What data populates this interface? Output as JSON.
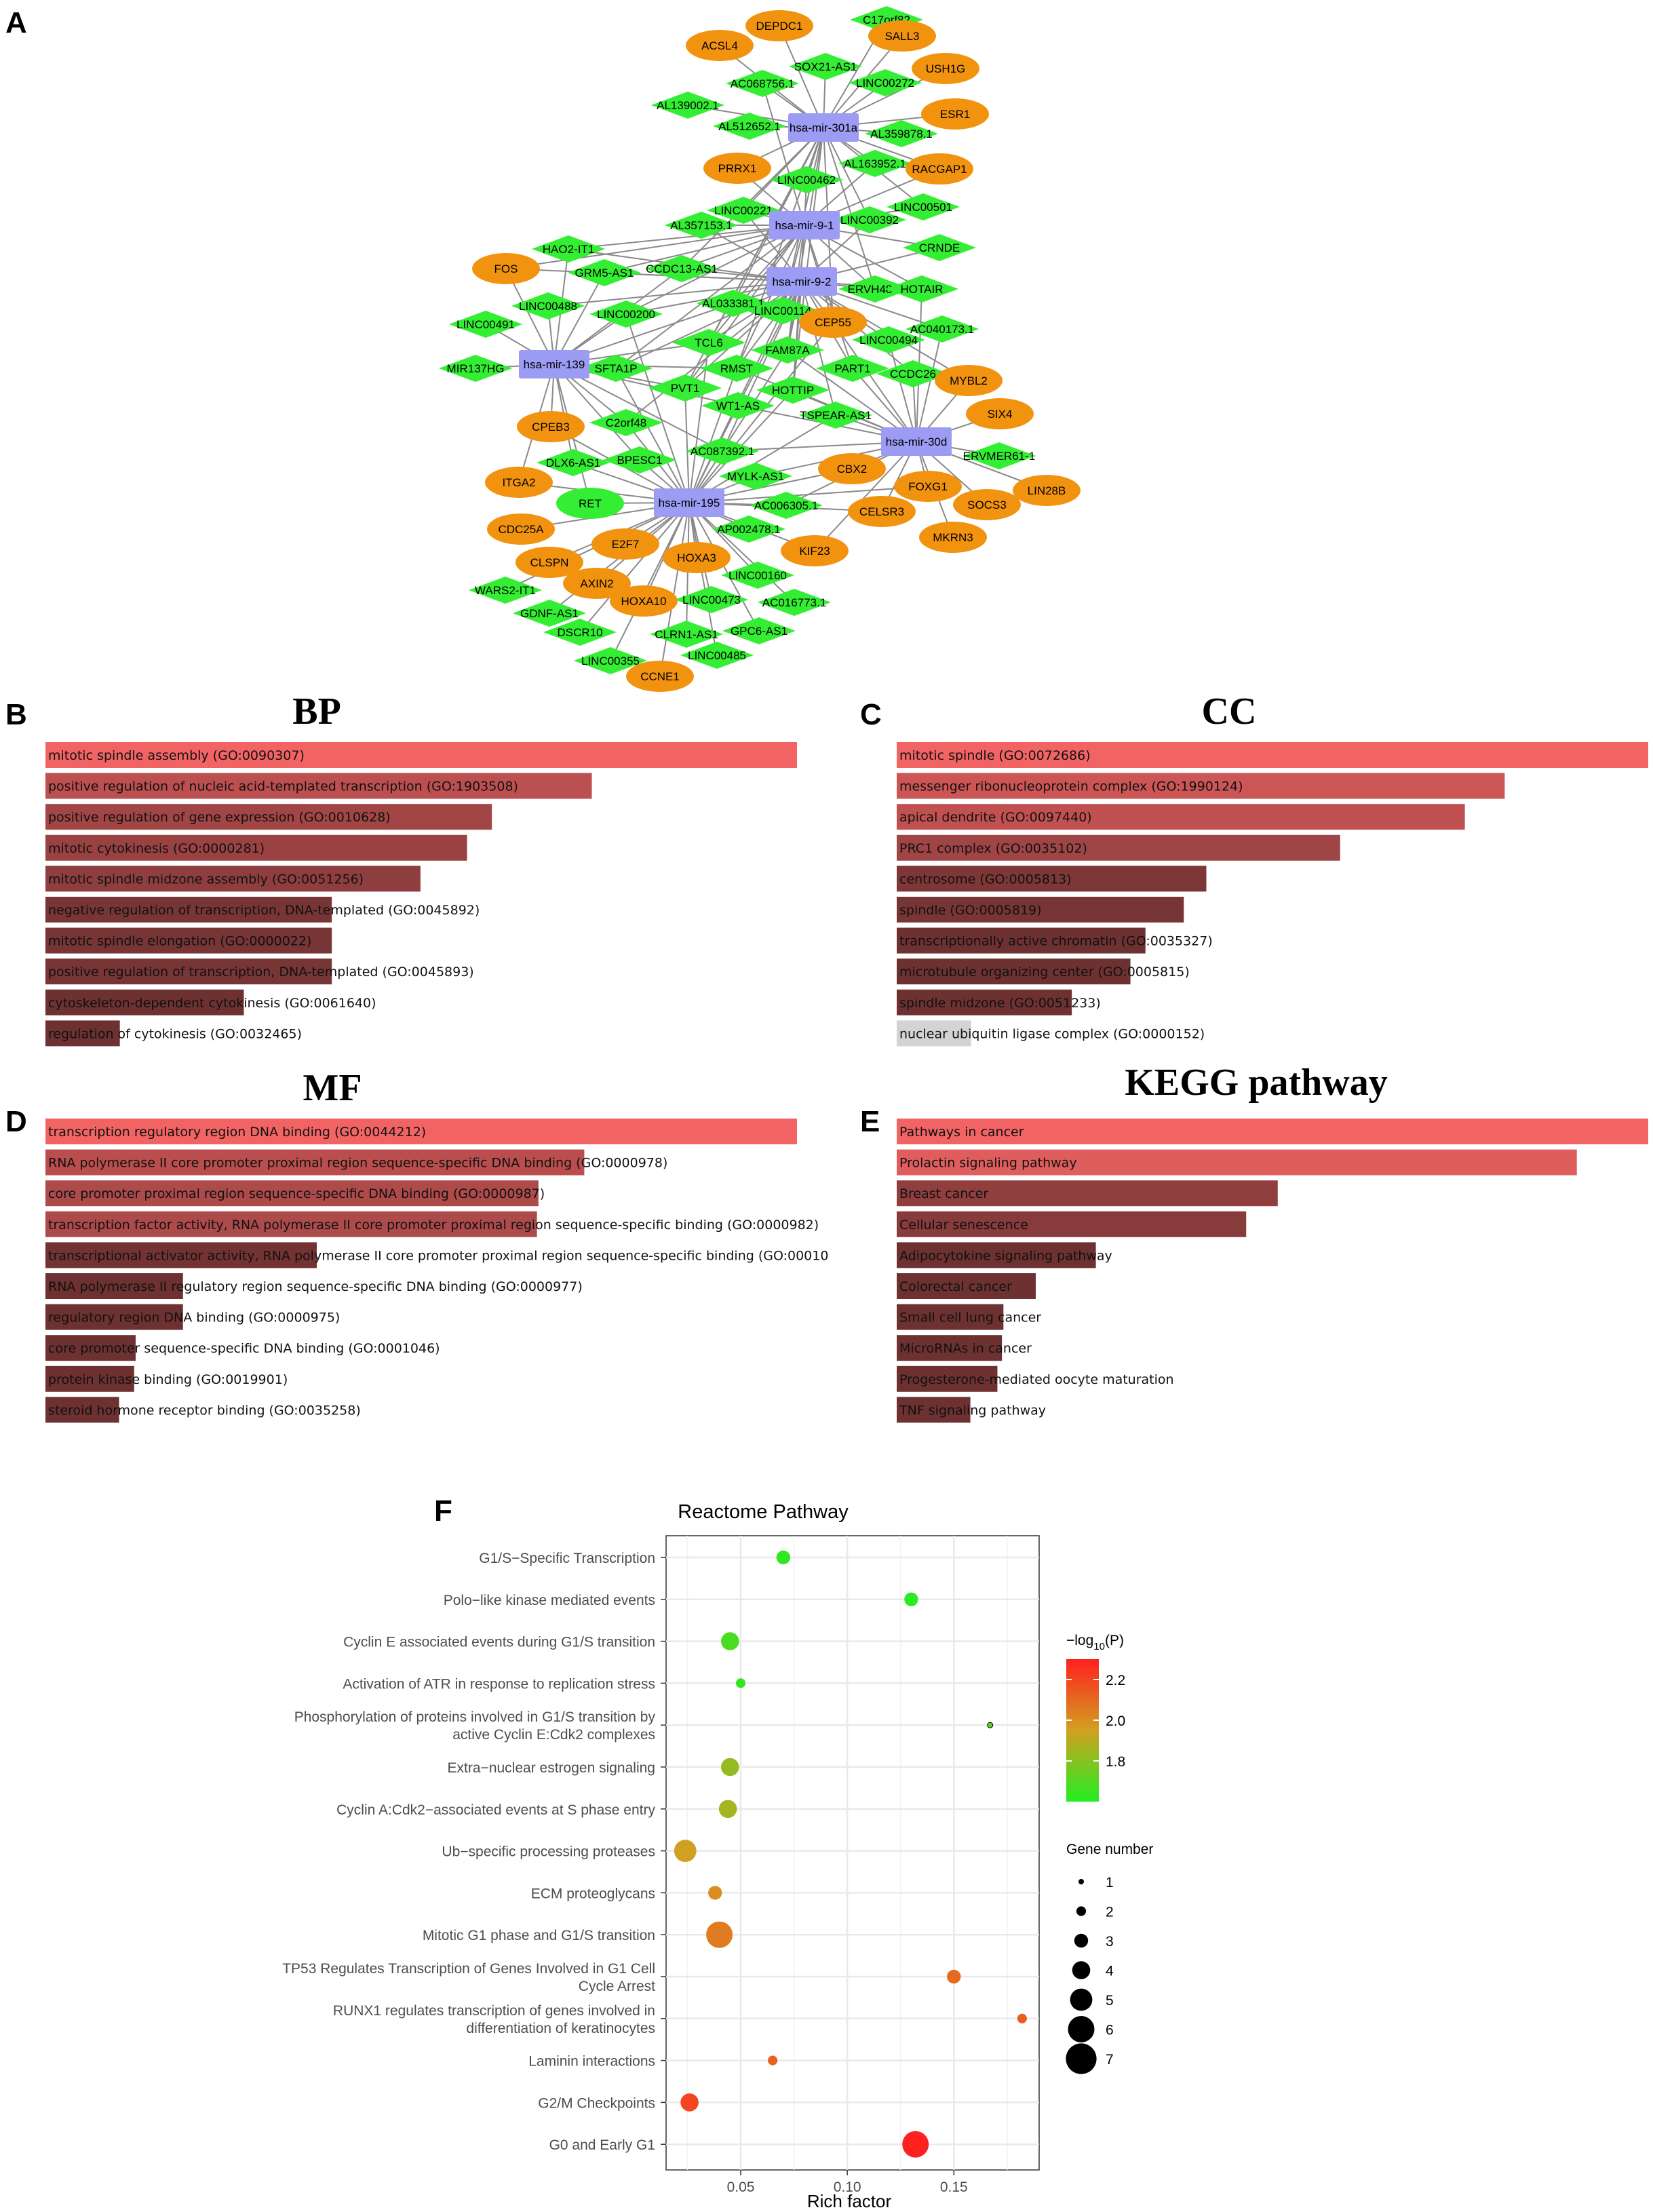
{
  "colors": {
    "bar_top": "#f26464",
    "bar_bottom": "#6d3131",
    "bar_gray": "#d3d3d3",
    "mirna": "#9c9cf4",
    "lncrna": "#33ee33",
    "mrna": "#f2930f",
    "edge": "#8a8a8a",
    "grid": "#e9e9e9",
    "scale_low": "#22ee22",
    "scale_high": "#ff2020"
  },
  "panel_labels": {
    "a": "A",
    "b": "B",
    "c": "C",
    "d": "D",
    "e": "E",
    "f": "F"
  },
  "network": {
    "mirnas": [
      "hsa-mir-301a",
      "hsa-mir-9-1",
      "hsa-mir-9-2",
      "hsa-mir-139",
      "hsa-mir-30d",
      "hsa-mir-195"
    ],
    "lncrnas": [
      "C17orf82",
      "SOX21-AS1",
      "AC068756.1",
      "LINC00272",
      "AL139002.1",
      "AL512652.1",
      "AL359878.1",
      "AL163952.1",
      "LINC00462",
      "LINC00501",
      "LINC00221",
      "AL357153.1",
      "LINC00392",
      "HAO2-IT1",
      "CRNDE",
      "GRM5-AS1",
      "CCDC13-AS1",
      "ERVH48-1",
      "HOTAIR",
      "LINC00488",
      "LINC00200",
      "AL033381.1",
      "LINC00114",
      "AC040173.1",
      "LINC00491",
      "TCL6",
      "FAM87A",
      "LINC00494",
      "MIR137HG",
      "SFTA1P",
      "RMST",
      "PART1",
      "CCDC26",
      "PVT1",
      "HOTTIP",
      "WT1-AS",
      "TSPEAR-AS1",
      "C2orf48",
      "AC087392.1",
      "ERVMER61-1",
      "DLX6-AS1",
      "BPESC1",
      "MYLK-AS1",
      "AC006305.1",
      "AP002478.1",
      "LINC00160",
      "WARS2-IT1",
      "LINC00473",
      "AC016773.1",
      "GDNF-AS1",
      "DSCR10",
      "CLRN1-AS1",
      "GPC6-AS1",
      "LINC00355",
      "LINC00485"
    ],
    "mrnas": [
      "DEPDC1",
      "SALL3",
      "ACSL4",
      "USH1G",
      "ESR1",
      "PRRX1",
      "RACGAP1",
      "FOS",
      "CEP55",
      "MYBL2",
      "SIX4",
      "CPEB3",
      "ITGA2",
      "CBX2",
      "FOXG1",
      "LIN28B",
      "SOCS3",
      "CELSR3",
      "RET",
      "CDC25A",
      "E2F7",
      "KIF23",
      "MKRN3",
      "HOXA3",
      "CLSPN",
      "AXIN2",
      "HOXA10",
      "CCNE1"
    ]
  },
  "bp": {
    "title": "BP",
    "bars": [
      {
        "label": "mitotic spindle assembly (GO:0090307)",
        "value": 1.0
      },
      {
        "label": "positive regulation of nucleic acid-templated transcription (GO:1903508)",
        "value": 0.727
      },
      {
        "label": "positive regulation of gene expression (GO:0010628)",
        "value": 0.594
      },
      {
        "label": "mitotic cytokinesis (GO:0000281)",
        "value": 0.561
      },
      {
        "label": "mitotic spindle midzone assembly (GO:0051256)",
        "value": 0.499
      },
      {
        "label": "negative regulation of transcription, DNA-templated (GO:0045892)",
        "value": 0.381
      },
      {
        "label": "mitotic spindle elongation (GO:0000022)",
        "value": 0.381
      },
      {
        "label": "positive regulation of transcription, DNA-templated (GO:0045893)",
        "value": 0.381
      },
      {
        "label": "cytoskeleton-dependent cytokinesis (GO:0061640)",
        "value": 0.264
      },
      {
        "label": "regulation of cytokinesis (GO:0032465)",
        "value": 0.099
      }
    ]
  },
  "cc": {
    "title": "CC",
    "bars": [
      {
        "label": "mitotic spindle (GO:0072686)",
        "value": 1.0
      },
      {
        "label": "messenger ribonucleoprotein complex (GO:1990124)",
        "value": 0.809
      },
      {
        "label": "apical dendrite (GO:0097440)",
        "value": 0.756
      },
      {
        "label": "PRC1 complex (GO:0035102)",
        "value": 0.59
      },
      {
        "label": "centrosome (GO:0005813)",
        "value": 0.412
      },
      {
        "label": "spindle (GO:0005819)",
        "value": 0.382
      },
      {
        "label": "transcriptionally active chromatin (GO:0035327)",
        "value": 0.331
      },
      {
        "label": "microtubule organizing center (GO:0005815)",
        "value": 0.311
      },
      {
        "label": "spindle midzone (GO:0051233)",
        "value": 0.233
      },
      {
        "label": "nuclear ubiquitin ligase complex (GO:0000152)",
        "value": 0.099
      }
    ]
  },
  "mf": {
    "title": "MF",
    "bars": [
      {
        "label": "transcription regulatory region DNA binding (GO:0044212)",
        "value": 1.0
      },
      {
        "label": "RNA polymerase II core promoter proximal region sequence-specific DNA binding (GO:0000978)",
        "value": 0.717
      },
      {
        "label": "core promoter proximal region sequence-specific DNA binding (GO:0000987)",
        "value": 0.656
      },
      {
        "label": "transcription factor activity, RNA polymerase II core promoter proximal region sequence-specific binding (GO:0000982)",
        "value": 0.654
      },
      {
        "label": "transcriptional activator activity, RNA polymerase II core promoter proximal region sequence-specific binding (GO:00010",
        "value": 0.361
      },
      {
        "label": "RNA polymerase II regulatory region sequence-specific DNA binding (GO:0000977)",
        "value": 0.183
      },
      {
        "label": "regulatory region DNA binding (GO:0000975)",
        "value": 0.183
      },
      {
        "label": "core promoter sequence-specific DNA binding (GO:0001046)",
        "value": 0.12
      },
      {
        "label": "protein kinase binding (GO:0019901)",
        "value": 0.118
      },
      {
        "label": "steroid hormone receptor binding (GO:0035258)",
        "value": 0.098
      }
    ]
  },
  "kegg": {
    "title": "KEGG pathway",
    "bars": [
      {
        "label": "Pathways in cancer",
        "value": 1.0
      },
      {
        "label": "Prolactin signaling pathway",
        "value": 0.905
      },
      {
        "label": "Breast cancer",
        "value": 0.507
      },
      {
        "label": "Cellular senescence",
        "value": 0.465
      },
      {
        "label": "Adipocytokine signaling pathway",
        "value": 0.265
      },
      {
        "label": "Colorectal cancer",
        "value": 0.185
      },
      {
        "label": "Small cell lung cancer",
        "value": 0.142
      },
      {
        "label": "MicroRNAs in cancer",
        "value": 0.14
      },
      {
        "label": "Progesterone-mediated oocyte maturation",
        "value": 0.134
      },
      {
        "label": "TNF signaling pathway",
        "value": 0.098
      }
    ]
  },
  "chart_data": {
    "type": "scatter",
    "title": "Reactome Pathway",
    "xlabel": "Rich factor",
    "ylabel": "",
    "xlim": [
      0.015,
      0.19
    ],
    "xticks": [
      0.05,
      0.1,
      0.15
    ],
    "x_tick_labels": [
      "0.05",
      "0.10",
      "0.15"
    ],
    "categories": [
      "G1/S-Specific Transcription",
      "Polo-like kinase mediated events",
      "Cyclin E associated events during G1/S transition",
      "Activation of ATR in response to replication stress",
      "Phosphorylation of proteins involved in G1/S transition by active Cyclin E:Cdk2 complexes",
      "Extra-nuclear estrogen signaling",
      "Cyclin A:Cdk2-associated events at S phase entry",
      "Ub-specific processing proteases",
      "ECM proteoglycans",
      "Mitotic G1 phase and G1/S transition",
      "TP53 Regulates Transcription of Genes Involved in G1 Cell Cycle Arrest",
      "RUNX1 regulates transcription of genes involved in differentiation of keratinocytes",
      "Laminin interactions",
      "G2/M Checkpoints",
      "G0 and Early G1"
    ],
    "category_lines": [
      [
        "G1/S−Specific Transcription"
      ],
      [
        "Polo−like kinase mediated events"
      ],
      [
        "Cyclin E associated events during G1/S transition"
      ],
      [
        "Activation of ATR in response to replication stress"
      ],
      [
        "Phosphorylation of proteins involved in G1/S transition by",
        "active Cyclin E:Cdk2 complexes"
      ],
      [
        "Extra−nuclear estrogen signaling"
      ],
      [
        "Cyclin A:Cdk2−associated events at S phase entry"
      ],
      [
        "Ub−specific processing proteases"
      ],
      [
        "ECM proteoglycans"
      ],
      [
        "Mitotic G1 phase and G1/S transition"
      ],
      [
        "TP53 Regulates Transcription of Genes Involved in G1 Cell",
        "Cycle Arrest"
      ],
      [
        "RUNX1 regulates transcription of genes involved in",
        "differentiation of keratinocytes"
      ],
      [
        "Laminin interactions"
      ],
      [
        "G2/M Checkpoints"
      ],
      [
        "G0 and Early G1"
      ]
    ],
    "rich_factor": [
      0.07,
      0.13,
      0.045,
      0.05,
      0.167,
      0.045,
      0.044,
      0.024,
      0.038,
      0.04,
      0.15,
      0.182,
      0.065,
      0.026,
      0.132
    ],
    "gene_number": [
      3,
      3,
      4,
      2,
      1,
      4,
      4,
      5,
      3,
      6,
      3,
      2,
      2,
      4,
      6
    ],
    "neg_log10_p": [
      1.63,
      1.62,
      1.68,
      1.64,
      1.7,
      1.83,
      1.86,
      1.95,
      2.0,
      2.05,
      2.1,
      2.13,
      2.12,
      2.2,
      2.3
    ],
    "color_legend": {
      "title": "−log10(P)",
      "ticks": [
        1.8,
        2.0,
        2.2
      ],
      "tick_labels": [
        "1.8",
        "2.0",
        "2.2"
      ],
      "range": [
        1.6,
        2.3
      ]
    },
    "size_legend": {
      "title": "Gene number",
      "values": [
        1,
        2,
        3,
        4,
        5,
        6,
        7
      ],
      "labels": [
        "1",
        "2",
        "3",
        "4",
        "5",
        "6",
        "7"
      ]
    }
  }
}
